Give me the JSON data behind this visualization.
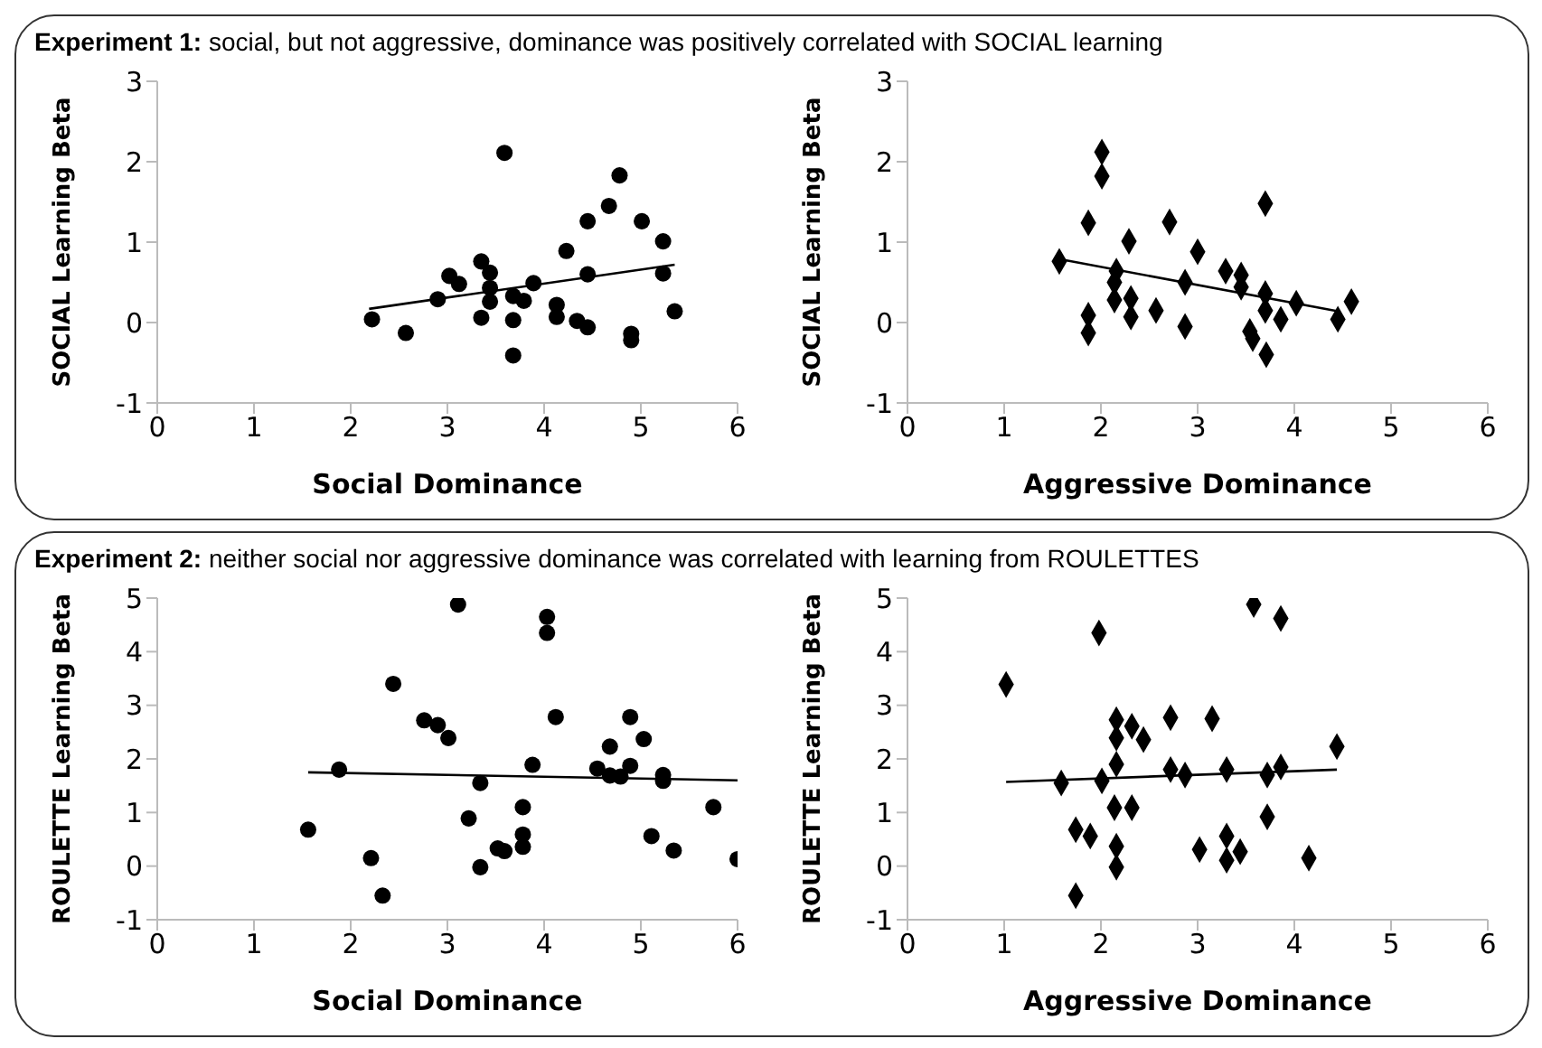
{
  "chart_data": [
    {
      "type": "scatter",
      "title": "Experiment 1: social, but not aggressive, dominance was positively correlated with SOCIAL learning",
      "xlabel": "Social Dominance",
      "ylabel": "SOCIAL Learning Beta",
      "xlim": [
        0,
        6
      ],
      "xticks": [
        0,
        1,
        2,
        3,
        4,
        5,
        6
      ],
      "ylim": [
        -1,
        3
      ],
      "yticks": [
        -1,
        0,
        1,
        2,
        3
      ],
      "marker": "circle",
      "grid": false,
      "legend": false,
      "series": [
        {
          "color": "#000000",
          "x": [
            2.22,
            2.57,
            2.9,
            3.02,
            3.12,
            3.35,
            3.44,
            3.44,
            3.44,
            3.35,
            3.59,
            3.68,
            3.79,
            3.68,
            3.68,
            3.89,
            4.13,
            4.13,
            4.23,
            4.34,
            4.45,
            4.45,
            4.45,
            4.67,
            4.78,
            4.9,
            4.9,
            5.01,
            5.23,
            5.23,
            5.35
          ],
          "values": [
            0.04,
            -0.13,
            0.29,
            0.58,
            0.48,
            0.76,
            0.62,
            0.43,
            0.26,
            0.06,
            2.11,
            0.33,
            0.27,
            0.03,
            -0.41,
            0.49,
            0.22,
            0.07,
            0.89,
            0.02,
            1.26,
            0.6,
            -0.06,
            1.45,
            1.83,
            -0.14,
            -0.22,
            1.26,
            1.01,
            0.61,
            0.14
          ]
        },
        {
          "type": "line",
          "marker": "none",
          "color": "#000000",
          "line_style": "solid",
          "x": [
            2.19,
            5.35
          ],
          "values": [
            0.17,
            0.72
          ]
        }
      ]
    },
    {
      "type": "scatter",
      "xlabel": "Aggressive Dominance",
      "ylabel": "SOCIAL Learning Beta",
      "xlim": [
        0,
        6
      ],
      "xticks": [
        0,
        1,
        2,
        3,
        4,
        5,
        6
      ],
      "ylim": [
        -1,
        3
      ],
      "yticks": [
        -1,
        0,
        1,
        2,
        3
      ],
      "marker": "diamond",
      "grid": false,
      "legend": false,
      "series": [
        {
          "color": "#000000",
          "x": [
            1.57,
            1.87,
            1.87,
            1.87,
            2.01,
            2.01,
            2.16,
            2.14,
            2.14,
            2.29,
            2.31,
            2.31,
            2.57,
            2.71,
            2.87,
            2.87,
            3.0,
            3.29,
            3.45,
            3.45,
            3.54,
            3.57,
            3.7,
            3.7,
            3.7,
            3.71,
            3.86,
            4.02,
            4.45,
            4.59
          ],
          "values": [
            0.76,
            0.09,
            -0.13,
            1.24,
            2.12,
            1.82,
            0.64,
            0.5,
            0.28,
            1.01,
            0.3,
            0.07,
            0.15,
            1.25,
            0.5,
            -0.05,
            0.88,
            0.64,
            0.59,
            0.44,
            -0.11,
            -0.2,
            1.48,
            0.36,
            0.15,
            -0.4,
            0.04,
            0.24,
            0.04,
            0.26
          ]
        },
        {
          "type": "line",
          "marker": "none",
          "color": "#000000",
          "line_style": "solid",
          "x": [
            1.57,
            4.45
          ],
          "values": [
            0.79,
            0.14
          ]
        }
      ]
    },
    {
      "type": "scatter",
      "title": "Experiment 2: neither social nor aggressive dominance was correlated with learning from ROULETTES",
      "xlabel": "Social Dominance",
      "ylabel": "ROULETTE Learning Beta",
      "xlim": [
        0,
        6
      ],
      "xticks": [
        0,
        1,
        2,
        3,
        4,
        5,
        6
      ],
      "ylim": [
        -1,
        5
      ],
      "yticks": [
        -1,
        0,
        1,
        2,
        3,
        4,
        5
      ],
      "marker": "circle",
      "grid": false,
      "legend": false,
      "series": [
        {
          "color": "#000000",
          "x": [
            1.56,
            1.88,
            2.21,
            2.33,
            2.44,
            2.76,
            2.9,
            3.01,
            3.11,
            3.22,
            3.34,
            3.34,
            3.52,
            3.59,
            3.78,
            3.78,
            3.78,
            3.88,
            4.03,
            4.03,
            4.12,
            4.55,
            4.68,
            4.68,
            4.79,
            4.89,
            4.89,
            5.03,
            5.11,
            5.23,
            5.23,
            5.34,
            5.75,
            6.0
          ],
          "values": [
            0.68,
            1.8,
            0.15,
            -0.55,
            3.4,
            2.72,
            2.63,
            2.39,
            4.88,
            0.89,
            1.55,
            -0.02,
            0.33,
            0.28,
            1.1,
            0.59,
            0.36,
            1.89,
            4.65,
            4.35,
            2.78,
            1.82,
            2.23,
            1.69,
            1.67,
            2.78,
            1.87,
            2.37,
            0.56,
            1.7,
            1.59,
            0.29,
            1.1,
            0.13
          ]
        },
        {
          "type": "line",
          "marker": "none",
          "color": "#000000",
          "line_style": "solid",
          "x": [
            1.56,
            6.0
          ],
          "values": [
            1.75,
            1.6
          ]
        }
      ]
    },
    {
      "type": "scatter",
      "xlabel": "Aggressive Dominance",
      "ylabel": "ROULETTE Learning Beta",
      "xlim": [
        0,
        6
      ],
      "xticks": [
        0,
        1,
        2,
        3,
        4,
        5,
        6
      ],
      "ylim": [
        -1,
        5
      ],
      "yticks": [
        -1,
        0,
        1,
        2,
        3,
        4,
        5
      ],
      "marker": "diamond",
      "grid": false,
      "legend": false,
      "series": [
        {
          "color": "#000000",
          "x": [
            1.02,
            1.59,
            1.74,
            1.89,
            1.74,
            1.98,
            2.01,
            2.16,
            2.16,
            2.16,
            2.14,
            2.32,
            2.16,
            2.16,
            2.32,
            2.44,
            2.72,
            2.72,
            2.87,
            3.02,
            3.15,
            3.3,
            3.3,
            3.3,
            3.44,
            3.58,
            3.72,
            3.72,
            3.86,
            3.86,
            4.15,
            4.44
          ],
          "values": [
            3.39,
            1.55,
            0.68,
            0.56,
            -0.55,
            4.35,
            1.59,
            1.9,
            2.73,
            2.39,
            1.09,
            1.09,
            0.37,
            -0.02,
            2.61,
            2.36,
            2.77,
            1.8,
            1.7,
            0.31,
            2.75,
            1.8,
            0.56,
            0.11,
            0.27,
            4.88,
            1.7,
            0.92,
            1.85,
            4.62,
            0.15,
            2.23
          ]
        },
        {
          "type": "line",
          "marker": "none",
          "color": "#000000",
          "line_style": "solid",
          "x": [
            1.02,
            4.44
          ],
          "values": [
            1.57,
            1.8
          ]
        }
      ]
    }
  ]
}
